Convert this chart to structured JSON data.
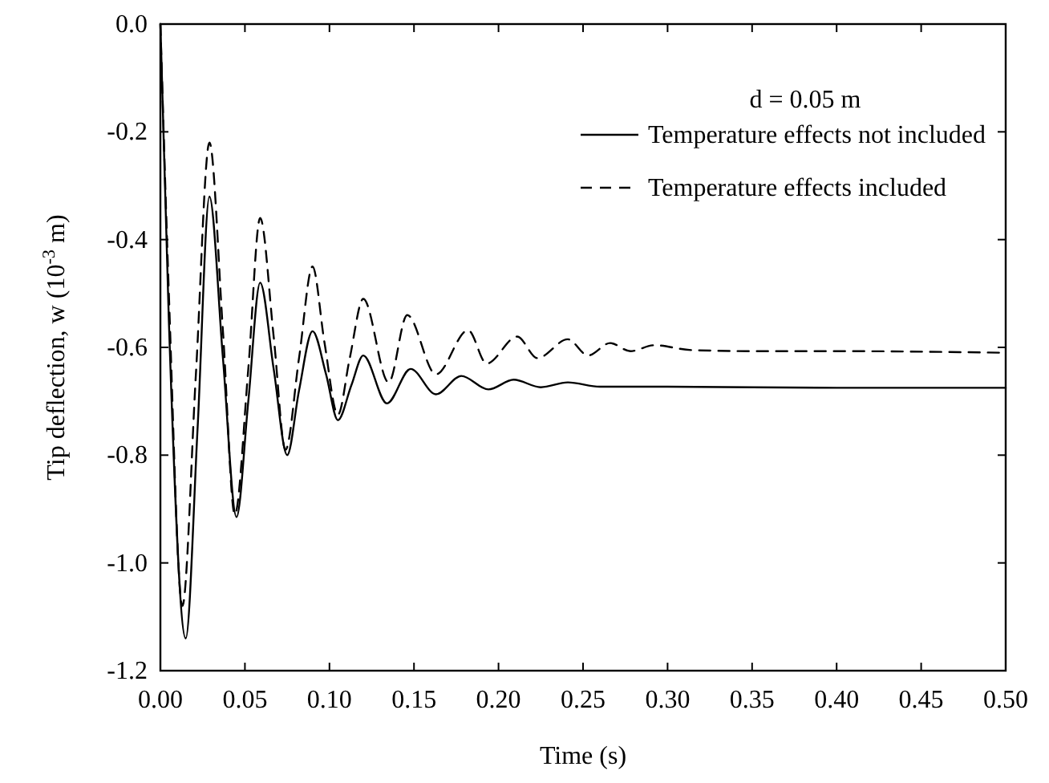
{
  "chart_data": {
    "type": "line",
    "xlabel": "Time (s)",
    "ylabel": "Tip deflection, w (10$^{-3}$ m)",
    "annotations": [
      "d = 0.05 m"
    ],
    "xlim": [
      0,
      0.5
    ],
    "ylim": [
      -1.2,
      0
    ],
    "xticks": [
      {
        "value": 0,
        "label": "0.00"
      },
      {
        "value": 0.05,
        "label": "0.05"
      },
      {
        "value": 0.1,
        "label": "0.10"
      },
      {
        "value": 0.15,
        "label": "0.15"
      },
      {
        "value": 0.2,
        "label": "0.20"
      },
      {
        "value": 0.25,
        "label": "0.25"
      },
      {
        "value": 0.3,
        "label": "0.30"
      },
      {
        "value": 0.35,
        "label": "0.35"
      },
      {
        "value": 0.4,
        "label": "0.40"
      },
      {
        "value": 0.45,
        "label": "0.45"
      },
      {
        "value": 0.5,
        "label": "0.50"
      }
    ],
    "yticks": [
      {
        "value": -1.2,
        "label": "-1.2"
      },
      {
        "value": -1,
        "label": "-1.0"
      },
      {
        "value": -0.8,
        "label": "-0.8"
      },
      {
        "value": -0.6,
        "label": "-0.6"
      },
      {
        "value": -0.4,
        "label": "-0.4"
      },
      {
        "value": -0.2,
        "label": "-0.2"
      },
      {
        "value": 0,
        "label": "0.0"
      }
    ],
    "grid": false,
    "legend": "top right",
    "series": [
      {
        "name": "Temperature effects not included",
        "color": "#000000",
        "line_style": "solid",
        "x": [
          0,
          0.005,
          0.015,
          0.022,
          0.029,
          0.037,
          0.045,
          0.052,
          0.059,
          0.067,
          0.075,
          0.082,
          0.09,
          0.098,
          0.105,
          0.113,
          0.12,
          0.134,
          0.148,
          0.163,
          0.178,
          0.194,
          0.209,
          0.225,
          0.241,
          0.26,
          0.3,
          0.4,
          0.5
        ],
        "values": [
          0,
          -0.55,
          -1.14,
          -0.75,
          -0.32,
          -0.62,
          -0.915,
          -0.7,
          -0.48,
          -0.64,
          -0.8,
          -0.68,
          -0.57,
          -0.65,
          -0.735,
          -0.67,
          -0.615,
          -0.704,
          -0.64,
          -0.687,
          -0.653,
          -0.678,
          -0.66,
          -0.674,
          -0.665,
          -0.673,
          -0.673,
          -0.675,
          -0.675
        ]
      },
      {
        "name": "Temperature effects included",
        "color": "#000000",
        "line_style": "dashed",
        "x": [
          0,
          0.005,
          0.013,
          0.021,
          0.029,
          0.037,
          0.044,
          0.052,
          0.059,
          0.067,
          0.074,
          0.082,
          0.09,
          0.097,
          0.105,
          0.112,
          0.12,
          0.135,
          0.146,
          0.163,
          0.182,
          0.193,
          0.211,
          0.223,
          0.241,
          0.253,
          0.266,
          0.278,
          0.292,
          0.314,
          0.35,
          0.4,
          0.5
        ],
        "values": [
          0,
          -0.5,
          -1.08,
          -0.65,
          -0.22,
          -0.57,
          -0.91,
          -0.64,
          -0.36,
          -0.58,
          -0.79,
          -0.62,
          -0.45,
          -0.59,
          -0.725,
          -0.62,
          -0.51,
          -0.665,
          -0.54,
          -0.65,
          -0.568,
          -0.63,
          -0.58,
          -0.62,
          -0.585,
          -0.615,
          -0.592,
          -0.607,
          -0.596,
          -0.605,
          -0.607,
          -0.607,
          -0.61
        ]
      }
    ]
  }
}
